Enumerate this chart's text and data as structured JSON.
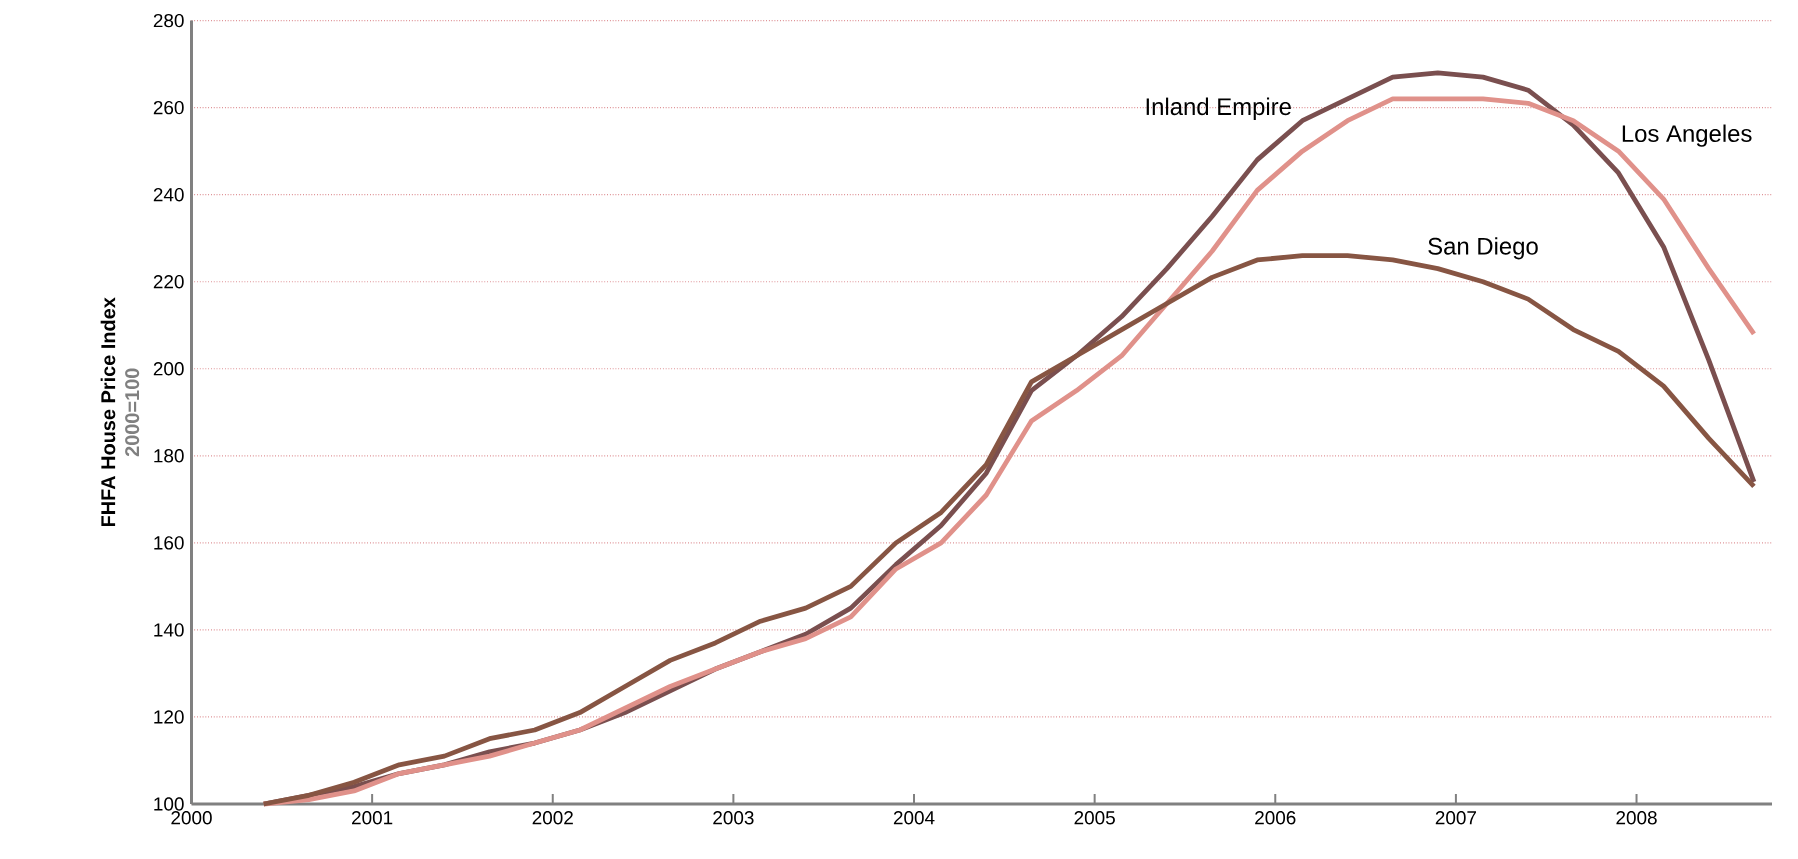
{
  "chart_data": {
    "type": "line",
    "ylabel": "FHFA House Price Index",
    "annotations": [
      "2000=100"
    ],
    "x": [
      2000.4,
      2000.65,
      2000.9,
      2001.15,
      2001.4,
      2001.65,
      2001.9,
      2002.15,
      2002.4,
      2002.65,
      2002.9,
      2003.15,
      2003.4,
      2003.65,
      2003.9,
      2004.15,
      2004.4,
      2004.65,
      2004.9,
      2005.15,
      2005.4,
      2005.65,
      2005.9,
      2006.15,
      2006.4,
      2006.65,
      2006.9,
      2007.15,
      2007.4,
      2007.65,
      2007.9,
      2008.15,
      2008.4,
      2008.65
    ],
    "xlim": [
      2000,
      2008.75
    ],
    "xticks": [
      2000,
      2001,
      2002,
      2003,
      2004,
      2005,
      2006,
      2007,
      2008
    ],
    "ylim": [
      100,
      280
    ],
    "yticks": [
      100,
      120,
      140,
      160,
      180,
      200,
      220,
      240,
      260,
      280
    ],
    "grid": "y",
    "series": [
      {
        "name": "Inland Empire",
        "color": "#7a4f4f",
        "values": [
          100,
          102,
          104,
          107,
          109,
          112,
          114,
          117,
          121,
          126,
          131,
          135,
          139,
          145,
          155,
          164,
          176,
          195,
          203,
          212,
          223,
          235,
          248,
          257,
          262,
          267,
          268,
          267,
          264,
          256,
          245,
          228,
          202,
          174
        ]
      },
      {
        "name": "Los Angeles",
        "color": "#e0918a",
        "values": [
          100,
          101,
          103,
          107,
          109,
          111,
          114,
          117,
          122,
          127,
          131,
          135,
          138,
          143,
          154,
          160,
          171,
          188,
          195,
          203,
          215,
          227,
          241,
          250,
          257,
          262,
          262,
          262,
          261,
          257,
          250,
          239,
          223,
          208
        ]
      },
      {
        "name": "San Diego",
        "color": "#875543",
        "values": [
          100,
          102,
          105,
          109,
          111,
          115,
          117,
          121,
          127,
          133,
          137,
          142,
          145,
          150,
          160,
          167,
          178,
          197,
          203,
          209,
          215,
          221,
          225,
          226,
          226,
          225,
          223,
          220,
          216,
          209,
          204,
          196,
          184,
          173
        ]
      }
    ]
  }
}
